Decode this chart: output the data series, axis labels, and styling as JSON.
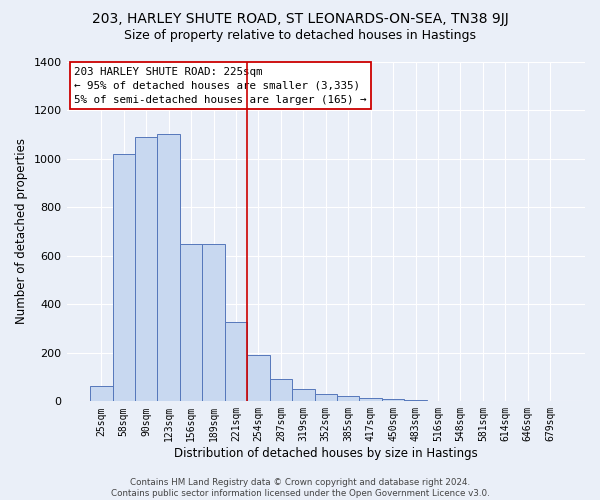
{
  "title": "203, HARLEY SHUTE ROAD, ST LEONARDS-ON-SEA, TN38 9JJ",
  "subtitle": "Size of property relative to detached houses in Hastings",
  "xlabel": "Distribution of detached houses by size in Hastings",
  "ylabel": "Number of detached properties",
  "bar_labels": [
    "25sqm",
    "58sqm",
    "90sqm",
    "123sqm",
    "156sqm",
    "189sqm",
    "221sqm",
    "254sqm",
    "287sqm",
    "319sqm",
    "352sqm",
    "385sqm",
    "417sqm",
    "450sqm",
    "483sqm",
    "516sqm",
    "548sqm",
    "581sqm",
    "614sqm",
    "646sqm",
    "679sqm"
  ],
  "bar_values": [
    65,
    1020,
    1090,
    1100,
    650,
    650,
    325,
    190,
    90,
    50,
    30,
    20,
    15,
    10,
    5,
    3,
    2,
    1,
    0,
    0,
    0
  ],
  "bar_color": "#c8d8f0",
  "bar_edge_color": "#5577bb",
  "background_color": "#eaeff8",
  "grid_color": "#ffffff",
  "annotation_line1": "203 HARLEY SHUTE ROAD: 225sqm",
  "annotation_line2": "← 95% of detached houses are smaller (3,335)",
  "annotation_line3": "5% of semi-detached houses are larger (165) →",
  "annotation_box_color": "white",
  "annotation_box_edge": "#cc0000",
  "vline_color": "#cc0000",
  "vline_index": 6.5,
  "ylim": [
    0,
    1400
  ],
  "yticks": [
    0,
    200,
    400,
    600,
    800,
    1000,
    1200,
    1400
  ],
  "footnote_line1": "Contains HM Land Registry data © Crown copyright and database right 2024.",
  "footnote_line2": "Contains public sector information licensed under the Open Government Licence v3.0."
}
